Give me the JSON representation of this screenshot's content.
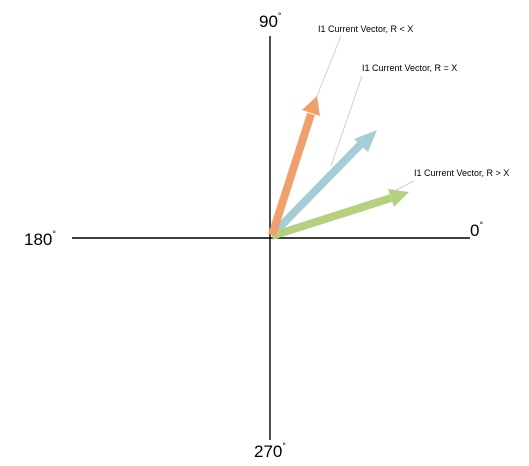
{
  "axes": {
    "angle_0": "0",
    "angle_90": "90",
    "angle_180": "180",
    "angle_270": "270",
    "degree_symbol": "°"
  },
  "vectors": [
    {
      "label": "I1 Current Vector, R < X",
      "color": "#f0a06c"
    },
    {
      "label": "I1 Current Vector, R = X",
      "color": "#a5cdd8"
    },
    {
      "label": "I1 Current Vector, R > X",
      "color": "#b5d17f"
    }
  ]
}
